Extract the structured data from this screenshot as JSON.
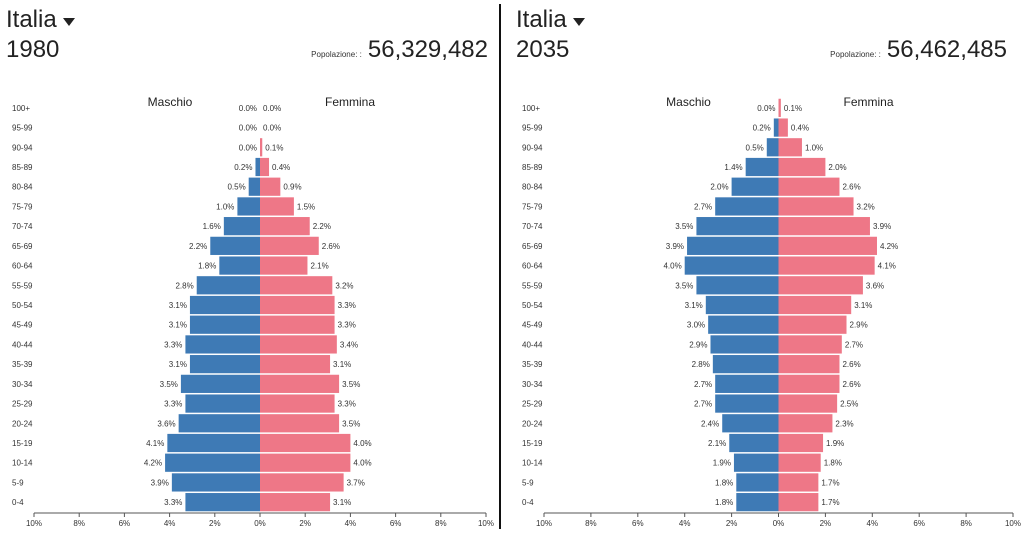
{
  "chart_data": [
    {
      "type": "bar",
      "country": "Italia",
      "year": "1980",
      "population_label": "Popolazione: :",
      "population_value": "56,329,482",
      "male_label": "Maschio",
      "female_label": "Femmina",
      "categories": [
        "100+",
        "95-99",
        "90-94",
        "85-89",
        "80-84",
        "75-79",
        "70-74",
        "65-69",
        "60-64",
        "55-59",
        "50-54",
        "45-49",
        "40-44",
        "35-39",
        "30-34",
        "25-29",
        "20-24",
        "15-19",
        "10-14",
        "5-9",
        "0-4"
      ],
      "series": [
        {
          "name": "Maschio",
          "values": [
            0.0,
            0.0,
            0.0,
            0.2,
            0.5,
            1.0,
            1.6,
            2.2,
            1.8,
            2.8,
            3.1,
            3.1,
            3.3,
            3.1,
            3.5,
            3.3,
            3.6,
            4.1,
            4.2,
            3.9,
            3.3
          ],
          "labels": [
            "0.0%",
            "0.0%",
            "0.0%",
            "0.2%",
            "0.5%",
            "1.0%",
            "1.6%",
            "2.2%",
            "1.8%",
            "2.8%",
            "3.1%",
            "3.1%",
            "3.3%",
            "3.1%",
            "3.5%",
            "3.3%",
            "3.6%",
            "4.1%",
            "4.2%",
            "3.9%",
            "3.3%"
          ]
        },
        {
          "name": "Femmina",
          "values": [
            0.0,
            0.0,
            0.1,
            0.4,
            0.9,
            1.5,
            2.2,
            2.6,
            2.1,
            3.2,
            3.3,
            3.3,
            3.4,
            3.1,
            3.5,
            3.3,
            3.5,
            4.0,
            4.0,
            3.7,
            3.1
          ],
          "labels": [
            "0.0%",
            "0.0%",
            "0.1%",
            "0.4%",
            "0.9%",
            "1.5%",
            "2.2%",
            "2.6%",
            "2.1%",
            "3.2%",
            "3.3%",
            "3.3%",
            "3.4%",
            "3.1%",
            "3.5%",
            "3.3%",
            "3.5%",
            "4.0%",
            "4.0%",
            "3.7%",
            "3.1%"
          ]
        }
      ],
      "xlim": [
        -10,
        10
      ],
      "xticks": [
        "10%",
        "8%",
        "6%",
        "4%",
        "2%",
        "0%",
        "2%",
        "4%",
        "6%",
        "8%",
        "10%"
      ],
      "colors": {
        "male": "#3e7ab5",
        "female": "#ee7787"
      }
    },
    {
      "type": "bar",
      "country": "Italia",
      "year": "2035",
      "population_label": "Popolazione: :",
      "population_value": "56,462,485",
      "male_label": "Maschio",
      "female_label": "Femmina",
      "categories": [
        "100+",
        "95-99",
        "90-94",
        "85-89",
        "80-84",
        "75-79",
        "70-74",
        "65-69",
        "60-64",
        "55-59",
        "50-54",
        "45-49",
        "40-44",
        "35-39",
        "30-34",
        "25-29",
        "20-24",
        "15-19",
        "10-14",
        "5-9",
        "0-4"
      ],
      "series": [
        {
          "name": "Maschio",
          "values": [
            0.0,
            0.2,
            0.5,
            1.4,
            2.0,
            2.7,
            3.5,
            3.9,
            4.0,
            3.5,
            3.1,
            3.0,
            2.9,
            2.8,
            2.7,
            2.7,
            2.4,
            2.1,
            1.9,
            1.8,
            1.8
          ],
          "labels": [
            "0.0%",
            "0.2%",
            "0.5%",
            "1.4%",
            "2.0%",
            "2.7%",
            "3.5%",
            "3.9%",
            "4.0%",
            "3.5%",
            "3.1%",
            "3.0%",
            "2.9%",
            "2.8%",
            "2.7%",
            "2.7%",
            "2.4%",
            "2.1%",
            "1.9%",
            "1.8%",
            "1.8%"
          ]
        },
        {
          "name": "Femmina",
          "values": [
            0.1,
            0.4,
            1.0,
            2.0,
            2.6,
            3.2,
            3.9,
            4.2,
            4.1,
            3.6,
            3.1,
            2.9,
            2.7,
            2.6,
            2.6,
            2.5,
            2.3,
            1.9,
            1.8,
            1.7,
            1.7
          ],
          "labels": [
            "0.1%",
            "0.4%",
            "1.0%",
            "2.0%",
            "2.6%",
            "3.2%",
            "3.9%",
            "4.2%",
            "4.1%",
            "3.6%",
            "3.1%",
            "2.9%",
            "2.7%",
            "2.6%",
            "2.6%",
            "2.5%",
            "2.3%",
            "1.9%",
            "1.8%",
            "1.7%",
            "1.7%"
          ]
        }
      ],
      "xlim": [
        -10,
        10
      ],
      "xticks": [
        "10%",
        "8%",
        "6%",
        "4%",
        "2%",
        "0%",
        "2%",
        "4%",
        "6%",
        "8%",
        "10%"
      ],
      "colors": {
        "male": "#3e7ab5",
        "female": "#ee7787"
      }
    }
  ]
}
